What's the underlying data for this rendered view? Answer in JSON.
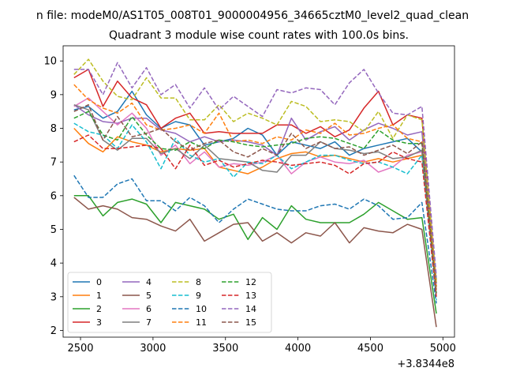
{
  "chart_data": {
    "type": "line",
    "suptitle": "n file: modeM0/AS1T05_008T01_9000004956_34665cztM0_level2_quad_clean",
    "title": "Quadrant 3 module wise count rates with 100.0s bins.",
    "xlabel": "",
    "ylabel": "",
    "x_offset_label": "+3.8344e8",
    "x_offset": 383440000,
    "xlim": [
      2380,
      5080
    ],
    "ylim": [
      1.8,
      10.45
    ],
    "xticks": [
      2500,
      3000,
      3500,
      4000,
      4500,
      5000
    ],
    "yticks": [
      2,
      3,
      4,
      5,
      6,
      7,
      8,
      9,
      10
    ],
    "xtick_labels": [
      "2500",
      "3000",
      "3500",
      "4000",
      "4500",
      "5000"
    ],
    "ytick_labels": [
      "2",
      "3",
      "4",
      "5",
      "6",
      "7",
      "8",
      "9",
      "10"
    ],
    "grid": false,
    "legend": {
      "position": "lower-left",
      "ncol": 4
    },
    "x": [
      2455,
      2555,
      2655,
      2755,
      2855,
      2955,
      3055,
      3155,
      3255,
      3355,
      3455,
      3555,
      3655,
      3755,
      3855,
      3955,
      4055,
      4155,
      4255,
      4355,
      4455,
      4555,
      4655,
      4755,
      4855,
      4955
    ],
    "series": [
      {
        "name": "0",
        "color": "#1f77b4",
        "dash": "solid",
        "values": [
          8.55,
          8.65,
          8.3,
          8.5,
          9.1,
          8.4,
          8.0,
          8.2,
          8.1,
          7.5,
          7.6,
          7.7,
          8.0,
          7.8,
          7.2,
          7.6,
          7.5,
          7.4,
          7.6,
          7.2,
          7.4,
          7.5,
          7.6,
          7.7,
          7.3,
          3.5
        ]
      },
      {
        "name": "1",
        "color": "#ff7f0e",
        "dash": "solid",
        "values": [
          8.0,
          7.55,
          7.3,
          7.75,
          7.6,
          7.5,
          7.3,
          7.4,
          7.35,
          7.4,
          6.85,
          6.75,
          6.65,
          6.85,
          7.1,
          7.25,
          7.3,
          7.15,
          7.2,
          7.1,
          7.0,
          7.1,
          7.0,
          7.1,
          7.2,
          3.2
        ]
      },
      {
        "name": "2",
        "color": "#2ca02c",
        "dash": "solid",
        "values": [
          6.0,
          6.0,
          5.4,
          5.8,
          5.9,
          5.75,
          5.2,
          5.8,
          5.7,
          5.6,
          5.3,
          5.45,
          4.7,
          5.35,
          5.0,
          5.7,
          5.3,
          5.2,
          5.2,
          5.2,
          5.45,
          5.8,
          5.55,
          5.3,
          5.35,
          2.5
        ]
      },
      {
        "name": "3",
        "color": "#d62728",
        "dash": "solid",
        "values": [
          9.5,
          9.75,
          8.65,
          9.4,
          8.9,
          8.7,
          8.0,
          8.3,
          8.45,
          7.85,
          7.9,
          7.85,
          7.85,
          7.85,
          8.1,
          8.1,
          7.85,
          8.05,
          7.75,
          7.95,
          8.6,
          9.1,
          8.1,
          8.4,
          8.3,
          3.4
        ]
      },
      {
        "name": "4",
        "color": "#9467bd",
        "dash": "solid",
        "values": [
          8.7,
          8.4,
          8.2,
          8.15,
          8.3,
          8.3,
          7.95,
          7.85,
          7.6,
          7.75,
          7.6,
          7.65,
          7.6,
          7.5,
          7.2,
          8.3,
          7.65,
          7.9,
          8.05,
          7.65,
          7.95,
          8.15,
          8.0,
          7.8,
          7.9,
          3.3
        ]
      },
      {
        "name": "5",
        "color": "#8c564b",
        "dash": "solid",
        "values": [
          5.95,
          5.6,
          5.7,
          5.6,
          5.35,
          5.3,
          5.1,
          4.95,
          5.3,
          4.65,
          4.9,
          5.15,
          5.2,
          4.65,
          4.9,
          4.6,
          4.9,
          4.8,
          5.2,
          4.6,
          5.05,
          4.95,
          4.9,
          5.15,
          5.0,
          2.1
        ]
      },
      {
        "name": "6",
        "color": "#e377c2",
        "dash": "solid",
        "values": [
          8.65,
          8.9,
          8.5,
          8.1,
          8.45,
          8.0,
          7.2,
          7.5,
          6.95,
          7.3,
          6.85,
          6.95,
          6.9,
          7.0,
          7.2,
          6.65,
          7.0,
          7.15,
          7.0,
          6.95,
          7.05,
          6.7,
          6.85,
          7.2,
          7.3,
          3.3
        ]
      },
      {
        "name": "7",
        "color": "#7f7f7f",
        "dash": "solid",
        "values": [
          8.7,
          8.55,
          7.65,
          7.35,
          7.7,
          7.7,
          7.25,
          7.4,
          7.1,
          7.5,
          7.1,
          7.05,
          7.0,
          6.75,
          6.7,
          7.2,
          7.2,
          7.6,
          7.4,
          7.35,
          7.25,
          7.3,
          7.1,
          7.15,
          7.35,
          3.4
        ]
      },
      {
        "name": "8",
        "color": "#bcbd22",
        "dash": "dashed",
        "values": [
          9.6,
          10.05,
          9.4,
          8.95,
          8.85,
          9.5,
          8.9,
          8.9,
          8.25,
          8.25,
          8.7,
          8.2,
          8.45,
          8.3,
          8.1,
          8.8,
          8.65,
          8.2,
          8.25,
          8.2,
          7.9,
          8.5,
          7.7,
          8.4,
          8.25,
          3.4
        ]
      },
      {
        "name": "9",
        "color": "#17becf",
        "dash": "dashed",
        "values": [
          8.15,
          7.9,
          7.8,
          7.4,
          8.1,
          7.6,
          6.8,
          7.7,
          7.2,
          7.0,
          7.1,
          6.55,
          7.0,
          6.95,
          7.2,
          6.8,
          7.0,
          7.2,
          7.2,
          7.05,
          6.95,
          7.0,
          6.85,
          6.65,
          7.2,
          2.9
        ]
      },
      {
        "name": "10",
        "color": "#1f77b4",
        "dash": "dashed",
        "values": [
          6.6,
          5.95,
          5.95,
          6.35,
          6.5,
          5.85,
          5.85,
          5.55,
          5.95,
          5.7,
          5.2,
          5.6,
          5.9,
          5.75,
          5.6,
          5.55,
          5.55,
          5.7,
          5.75,
          5.6,
          5.9,
          5.7,
          5.3,
          5.35,
          5.8,
          2.8
        ]
      },
      {
        "name": "11",
        "color": "#ff7f0e",
        "dash": "dashed",
        "values": [
          9.3,
          8.85,
          8.6,
          8.45,
          8.75,
          8.1,
          7.95,
          8.0,
          8.1,
          7.85,
          8.45,
          7.6,
          7.65,
          7.55,
          7.75,
          7.65,
          7.95,
          7.85,
          8.15,
          7.8,
          7.85,
          8.0,
          8.1,
          7.7,
          7.6,
          3.3
        ]
      },
      {
        "name": "12",
        "color": "#2ca02c",
        "dash": "dashed",
        "values": [
          8.3,
          8.5,
          7.8,
          7.65,
          8.35,
          7.8,
          7.4,
          7.35,
          7.6,
          7.4,
          7.65,
          7.6,
          7.5,
          7.45,
          7.5,
          7.55,
          7.7,
          7.75,
          7.7,
          7.55,
          7.4,
          7.95,
          7.65,
          7.55,
          7.55,
          3.1
        ]
      },
      {
        "name": "13",
        "color": "#d62728",
        "dash": "dashed",
        "values": [
          7.6,
          7.8,
          7.4,
          7.4,
          7.45,
          7.5,
          7.4,
          6.8,
          7.5,
          6.9,
          7.05,
          6.85,
          6.95,
          7.05,
          7.0,
          6.9,
          6.95,
          7.0,
          6.9,
          6.65,
          6.95,
          7.0,
          7.3,
          7.1,
          7.0,
          3.0
        ]
      },
      {
        "name": "14",
        "color": "#9467bd",
        "dash": "dashed",
        "values": [
          9.75,
          9.75,
          9.0,
          9.95,
          9.2,
          9.8,
          9.0,
          9.3,
          8.6,
          9.2,
          8.55,
          8.95,
          8.65,
          8.35,
          9.15,
          9.05,
          9.2,
          9.15,
          8.7,
          9.35,
          9.75,
          9.05,
          8.45,
          8.4,
          8.65,
          3.6
        ]
      },
      {
        "name": "15",
        "color": "#8c564b",
        "dash": "dashed",
        "values": [
          8.5,
          8.7,
          7.65,
          8.35,
          7.75,
          7.85,
          8.0,
          7.6,
          7.35,
          7.55,
          7.65,
          7.3,
          7.15,
          7.4,
          7.2,
          7.85,
          7.4,
          7.6,
          7.4,
          7.45,
          7.2,
          7.35,
          7.5,
          7.25,
          7.6,
          3.1
        ]
      }
    ]
  }
}
